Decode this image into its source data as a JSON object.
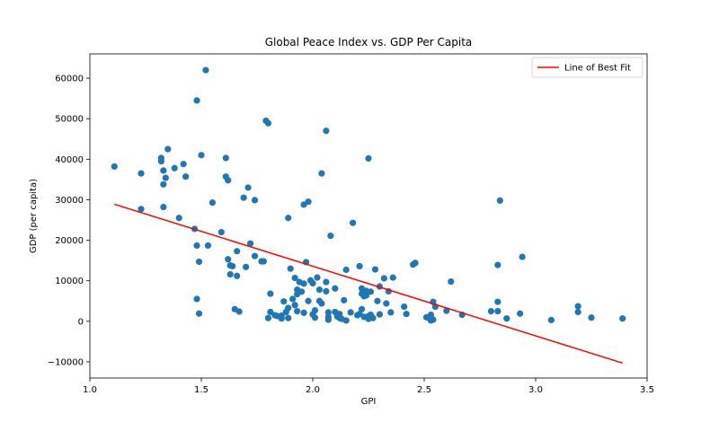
{
  "chart_data": {
    "type": "scatter",
    "title": "Global Peace Index vs. GDP Per Capita",
    "xlabel": "GPI",
    "ylabel": "GDP (per capita)",
    "xlim": [
      1.0,
      3.5
    ],
    "ylim": [
      -14000,
      66000
    ],
    "xticks": [
      "1.0",
      "1.5",
      "2.0",
      "2.5",
      "3.0",
      "3.5"
    ],
    "yticks": [
      "−10000",
      "0",
      "10000",
      "20000",
      "30000",
      "40000",
      "50000",
      "60000"
    ],
    "grid": false,
    "legend": {
      "position": "top-right",
      "entries": [
        "Line of Best Fit"
      ]
    },
    "colors": {
      "points": "#1f77b4",
      "fit_line": "#ff0000"
    },
    "series": [
      {
        "type": "scatter",
        "points": [
          [
            1.11,
            38200
          ],
          [
            1.23,
            36500
          ],
          [
            1.23,
            27700
          ],
          [
            1.32,
            39500
          ],
          [
            1.32,
            40300
          ],
          [
            1.33,
            37200
          ],
          [
            1.33,
            33800
          ],
          [
            1.33,
            28200
          ],
          [
            1.34,
            35400
          ],
          [
            1.35,
            42500
          ],
          [
            1.38,
            37800
          ],
          [
            1.4,
            25500
          ],
          [
            1.42,
            38800
          ],
          [
            1.43,
            35700
          ],
          [
            1.47,
            22800
          ],
          [
            1.48,
            18700
          ],
          [
            1.48,
            54500
          ],
          [
            1.49,
            14700
          ],
          [
            1.48,
            5500
          ],
          [
            1.49,
            1900
          ],
          [
            1.5,
            41000
          ],
          [
            1.52,
            62000
          ],
          [
            1.53,
            18700
          ],
          [
            1.55,
            29300
          ],
          [
            1.59,
            22000
          ],
          [
            1.61,
            40300
          ],
          [
            1.61,
            35700
          ],
          [
            1.62,
            34800
          ],
          [
            1.62,
            15300
          ],
          [
            1.63,
            13800
          ],
          [
            1.63,
            11600
          ],
          [
            1.64,
            13600
          ],
          [
            1.65,
            3000
          ],
          [
            1.66,
            17300
          ],
          [
            1.66,
            11200
          ],
          [
            1.67,
            2400
          ],
          [
            1.69,
            30500
          ],
          [
            1.7,
            13400
          ],
          [
            1.71,
            33000
          ],
          [
            1.72,
            19200
          ],
          [
            1.74,
            29900
          ],
          [
            1.74,
            16100
          ],
          [
            1.77,
            14800
          ],
          [
            1.78,
            14800
          ],
          [
            1.79,
            49500
          ],
          [
            1.8,
            48900
          ],
          [
            1.8,
            800
          ],
          [
            1.81,
            6800
          ],
          [
            1.81,
            2300
          ],
          [
            1.83,
            1500
          ],
          [
            1.84,
            1300
          ],
          [
            1.86,
            1400
          ],
          [
            1.86,
            700
          ],
          [
            1.87,
            4900
          ],
          [
            1.88,
            2300
          ],
          [
            1.89,
            25500
          ],
          [
            1.89,
            3300
          ],
          [
            1.89,
            800
          ],
          [
            1.9,
            13000
          ],
          [
            1.91,
            5500
          ],
          [
            1.92,
            4000
          ],
          [
            1.92,
            10700
          ],
          [
            1.93,
            7800
          ],
          [
            1.93,
            6700
          ],
          [
            1.93,
            2500
          ],
          [
            1.94,
            9700
          ],
          [
            1.95,
            7300
          ],
          [
            1.96,
            28800
          ],
          [
            1.96,
            9300
          ],
          [
            1.96,
            2100
          ],
          [
            1.97,
            14600
          ],
          [
            1.98,
            29500
          ],
          [
            1.98,
            5000
          ],
          [
            1.99,
            10100
          ],
          [
            2.0,
            9400
          ],
          [
            2.0,
            1700
          ],
          [
            2.01,
            2700
          ],
          [
            2.01,
            900
          ],
          [
            2.02,
            10800
          ],
          [
            2.03,
            7800
          ],
          [
            2.03,
            5000
          ],
          [
            2.04,
            4400
          ],
          [
            2.04,
            36500
          ],
          [
            2.06,
            47000
          ],
          [
            2.06,
            9700
          ],
          [
            2.06,
            7400
          ],
          [
            2.07,
            2200
          ],
          [
            2.07,
            1100
          ],
          [
            2.07,
            400
          ],
          [
            2.08,
            21100
          ],
          [
            2.1,
            8100
          ],
          [
            2.1,
            2300
          ],
          [
            2.11,
            1400
          ],
          [
            2.11,
            1200
          ],
          [
            2.12,
            1800
          ],
          [
            2.12,
            800
          ],
          [
            2.13,
            600
          ],
          [
            2.14,
            5200
          ],
          [
            2.15,
            12700
          ],
          [
            2.15,
            200
          ],
          [
            2.17,
            2200
          ],
          [
            2.18,
            24300
          ],
          [
            2.2,
            1500
          ],
          [
            2.21,
            13600
          ],
          [
            2.21,
            1800
          ],
          [
            2.22,
            3000
          ],
          [
            2.22,
            8100
          ],
          [
            2.22,
            6800
          ],
          [
            2.23,
            6200
          ],
          [
            2.23,
            1100
          ],
          [
            2.24,
            7500
          ],
          [
            2.24,
            6400
          ],
          [
            2.25,
            40200
          ],
          [
            2.25,
            1300
          ],
          [
            2.25,
            600
          ],
          [
            2.26,
            7300
          ],
          [
            2.26,
            1600
          ],
          [
            2.27,
            800
          ],
          [
            2.28,
            12800
          ],
          [
            2.29,
            5000
          ],
          [
            2.3,
            8600
          ],
          [
            2.3,
            1700
          ],
          [
            2.32,
            10600
          ],
          [
            2.33,
            4400
          ],
          [
            2.34,
            7400
          ],
          [
            2.35,
            2200
          ],
          [
            2.36,
            10800
          ],
          [
            2.41,
            3600
          ],
          [
            2.42,
            1800
          ],
          [
            2.45,
            14000
          ],
          [
            2.46,
            14400
          ],
          [
            2.51,
            1000
          ],
          [
            2.52,
            800
          ],
          [
            2.53,
            1600
          ],
          [
            2.53,
            200
          ],
          [
            2.54,
            400
          ],
          [
            2.54,
            4800
          ],
          [
            2.55,
            3600
          ],
          [
            2.6,
            2600
          ],
          [
            2.62,
            9800
          ],
          [
            2.67,
            1600
          ],
          [
            2.8,
            2500
          ],
          [
            2.83,
            13900
          ],
          [
            2.83,
            4800
          ],
          [
            2.83,
            2500
          ],
          [
            2.84,
            29800
          ],
          [
            2.87,
            700
          ],
          [
            2.93,
            1900
          ],
          [
            2.94,
            15900
          ],
          [
            3.07,
            300
          ],
          [
            3.19,
            3700
          ],
          [
            3.19,
            2300
          ],
          [
            3.25,
            900
          ],
          [
            3.39,
            700
          ]
        ]
      },
      {
        "type": "line",
        "name": "Line of Best Fit",
        "points": [
          [
            1.11,
            28900
          ],
          [
            3.39,
            -10300
          ]
        ]
      }
    ]
  }
}
